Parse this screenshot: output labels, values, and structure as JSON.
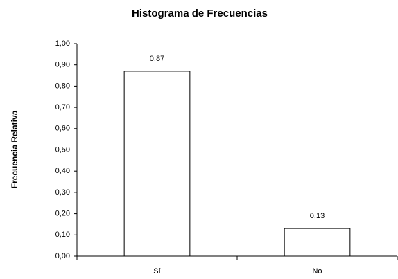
{
  "chart_data": {
    "type": "bar",
    "title": "Histograma de Frecuencias",
    "y_label": "Frecuencia Relativa",
    "categories": [
      "Sí",
      "No"
    ],
    "values": [
      0.87,
      0.13
    ],
    "value_labels": [
      "0,87",
      "0,13"
    ],
    "color": "#ffffff",
    "ylim": [
      0,
      1
    ],
    "yticks": [
      {
        "value": 0,
        "label": "0,00"
      },
      {
        "value": 0.1,
        "label": "0,10"
      },
      {
        "value": 0.2,
        "label": "0,20"
      },
      {
        "value": 0.3,
        "label": "0,30"
      },
      {
        "value": 0.4,
        "label": "0,40"
      },
      {
        "value": 0.5,
        "label": "0,50"
      },
      {
        "value": 0.6,
        "label": "0,60"
      },
      {
        "value": 0.7,
        "label": "0,70"
      },
      {
        "value": 0.8,
        "label": "0,80"
      },
      {
        "value": 0.9,
        "label": "0,90"
      },
      {
        "value": 1,
        "label": "1,00"
      }
    ],
    "grid": false
  }
}
